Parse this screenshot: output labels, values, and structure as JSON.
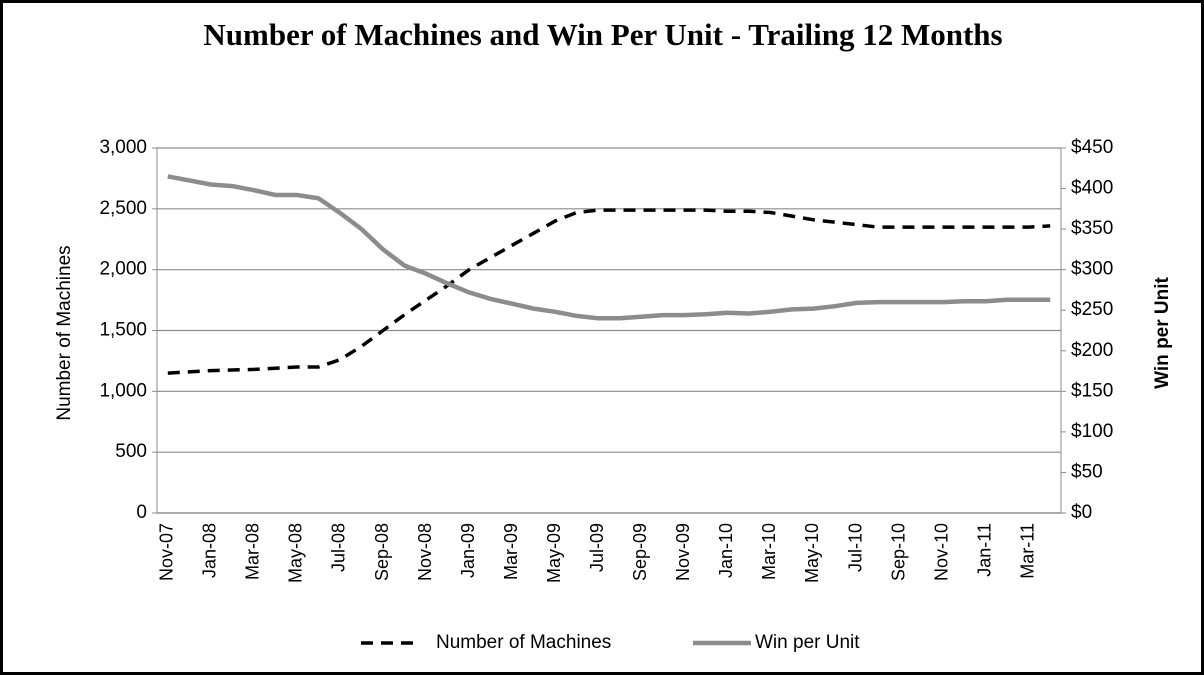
{
  "chart_data": {
    "type": "line",
    "title": "Number of Machines and Win Per Unit - Trailing 12 Months",
    "y_label": "Number of Machines",
    "y2_label": "Win per Unit",
    "categories": [
      "Nov-07",
      null,
      "Jan-08",
      null,
      "Mar-08",
      null,
      "May-08",
      null,
      "Jul-08",
      null,
      "Sep-08",
      null,
      "Nov-08",
      null,
      "Jan-09",
      null,
      "Mar-09",
      null,
      "May-09",
      null,
      "Jul-09",
      null,
      "Sep-09",
      null,
      "Nov-09",
      null,
      "Jan-10",
      null,
      "Mar-10",
      null,
      "May-10",
      null,
      "Jul-10",
      null,
      "Sep-10",
      null,
      "Nov-10",
      null,
      "Jan-11",
      null,
      "Mar-11",
      null
    ],
    "series": [
      {
        "name": "Number of Machines",
        "color": "#000000",
        "dashed": true,
        "values": [
          1150,
          1160,
          1170,
          1175,
          1180,
          1190,
          1200,
          1200,
          1260,
          1370,
          1500,
          1630,
          1750,
          1870,
          2000,
          2100,
          2200,
          2300,
          2400,
          2470,
          2490,
          2490,
          2490,
          2490,
          2490,
          2490,
          2480,
          2480,
          2470,
          2440,
          2410,
          2390,
          2370,
          2350,
          2350,
          2350,
          2350,
          2350,
          2350,
          2350,
          2350,
          2360
        ]
      },
      {
        "name": "Win per Unit",
        "color": "#8c8c8c",
        "dashed": false,
        "axis": "y2",
        "values": [
          415,
          410,
          405,
          403,
          398,
          392,
          392,
          388,
          370,
          350,
          325,
          305,
          295,
          283,
          272,
          264,
          258,
          252,
          248,
          243,
          240,
          240,
          242,
          244,
          244,
          245,
          247,
          246,
          248,
          251,
          252,
          255,
          259,
          260,
          260,
          260,
          260,
          261,
          261,
          263,
          263,
          263
        ]
      }
    ],
    "ylim": [
      0,
      3000
    ],
    "yticks": [
      0,
      500,
      {
        "value": 1000,
        "label": "1,000"
      },
      {
        "value": 1500,
        "label": "1,500"
      },
      {
        "value": 2000,
        "label": "2,000"
      },
      {
        "value": 2500,
        "label": "2,500"
      },
      {
        "value": 3000,
        "label": "3,000"
      }
    ],
    "y2lim": [
      0,
      450
    ],
    "y2ticks": [
      {
        "value": 0,
        "label": "$0"
      },
      {
        "value": 50,
        "label": "$50"
      },
      {
        "value": 100,
        "label": "$100"
      },
      {
        "value": 150,
        "label": "$150"
      },
      {
        "value": 200,
        "label": "$200"
      },
      {
        "value": 250,
        "label": "$250"
      },
      {
        "value": 300,
        "label": "$300"
      },
      {
        "value": 350,
        "label": "$350"
      },
      {
        "value": 400,
        "label": "$400"
      },
      {
        "value": 450,
        "label": "$450"
      }
    ],
    "grid": true,
    "legend": "bottom"
  }
}
